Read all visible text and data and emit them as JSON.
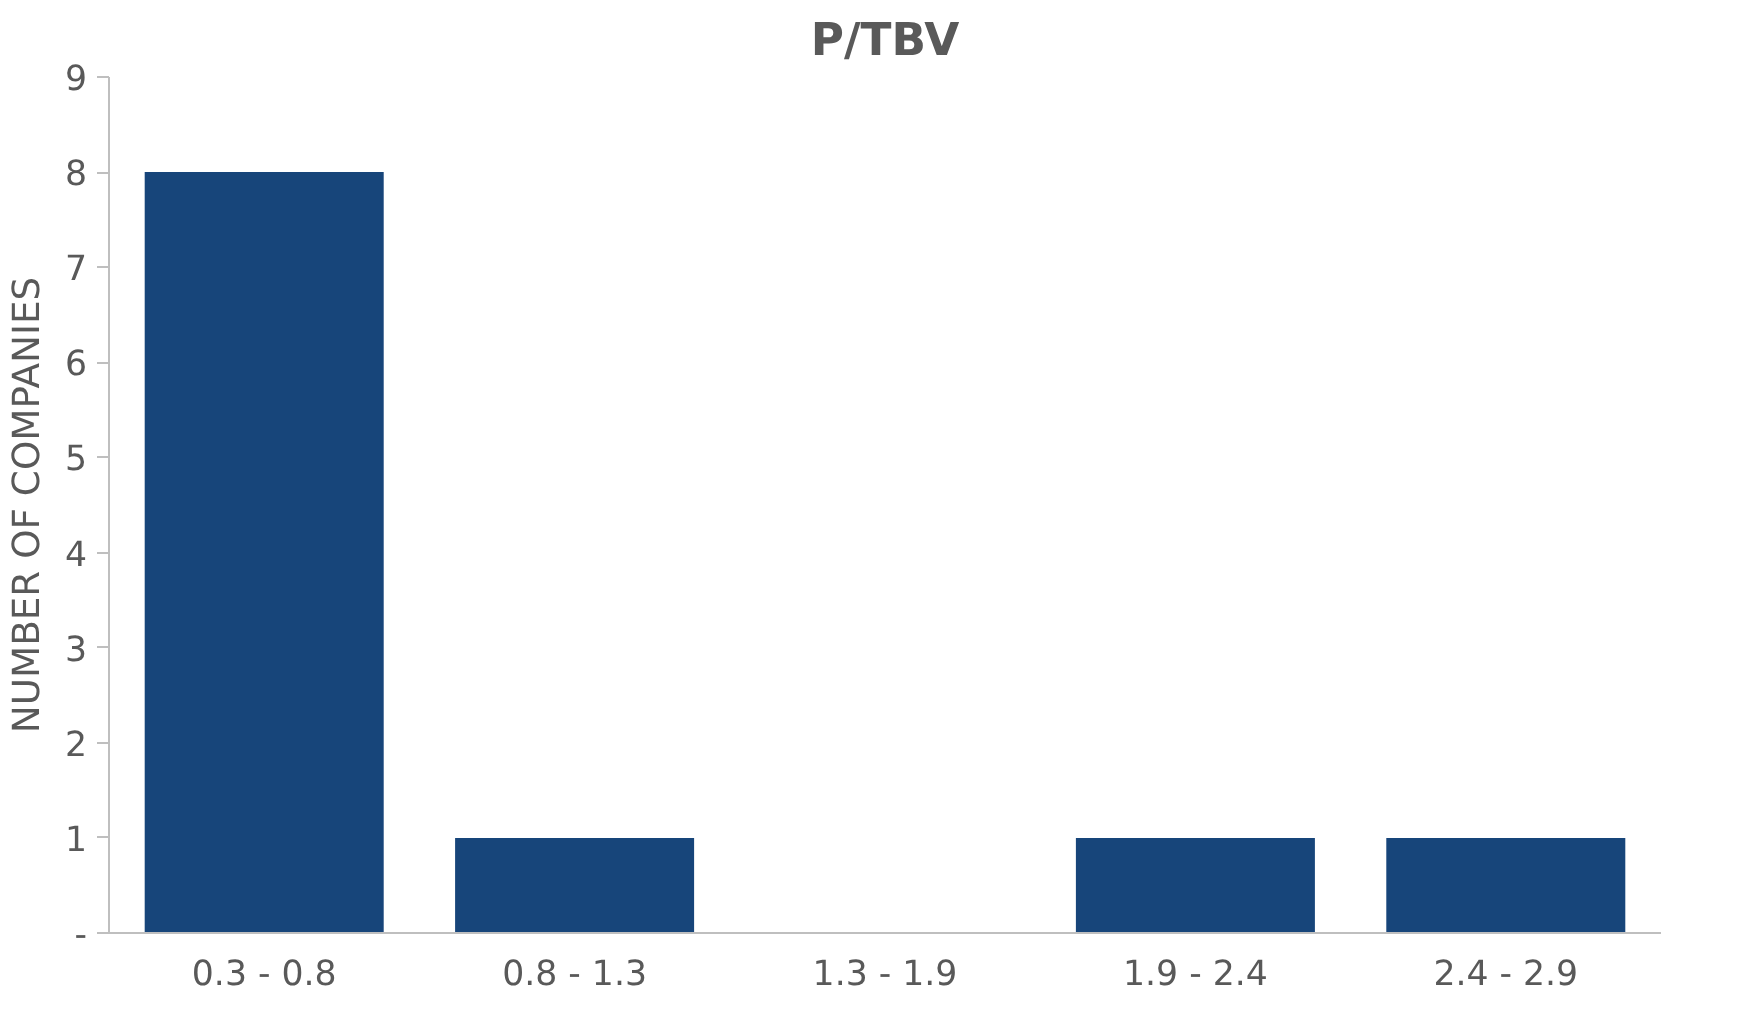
{
  "chart_data": {
    "type": "bar",
    "title": "P/TBV",
    "ylabel": "NUMBER OF COMPANIES",
    "categories": [
      "0.3 - 0.8",
      "0.8 - 1.3",
      "1.3 - 1.9",
      "1.9 - 2.4",
      "2.4 - 2.9"
    ],
    "values": [
      8,
      1,
      0,
      1,
      1
    ],
    "color": "#17457a",
    "ylim": [
      0,
      9
    ],
    "yticks": [
      {
        "value": 0,
        "label": "-"
      },
      1,
      2,
      3,
      4,
      5,
      6,
      7,
      8,
      9
    ],
    "grid": false
  }
}
